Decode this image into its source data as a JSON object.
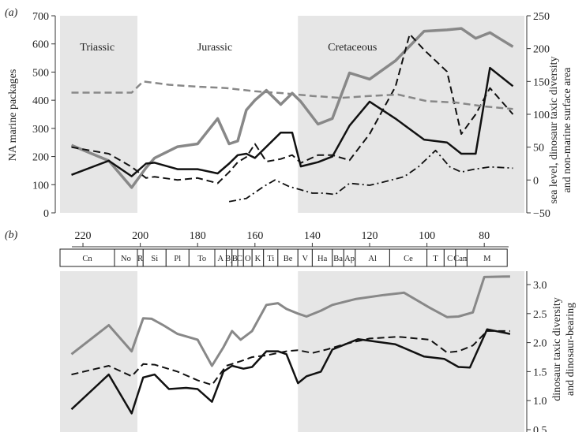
{
  "chart_data": [
    {
      "panel": "(a)",
      "type": "line",
      "x_axis": {
        "reversed": true,
        "unit": "Ma",
        "range": [
          228,
          66
        ]
      },
      "y_left": {
        "label": "NA marine packages",
        "range": [
          0,
          700
        ],
        "ticks": [
          0,
          100,
          200,
          300,
          400,
          500,
          600,
          700
        ]
      },
      "y_right": {
        "label_line1": "sea level, dinosaur taxic diversity",
        "label_line2": "and non-marine surface area",
        "range": [
          -50,
          250
        ],
        "ticks": [
          -50,
          0,
          50,
          100,
          150,
          200,
          250
        ]
      },
      "period_labels": [
        {
          "text": "Triassic",
          "x": 215
        },
        {
          "text": "Jurassic",
          "x": 174
        },
        {
          "text": "Cretaceous",
          "x": 126
        }
      ],
      "shaded_intervals": [
        [
          228,
          201
        ],
        [
          145,
          66
        ]
      ],
      "series": [
        {
          "axis": "left",
          "color": "#888888",
          "dash": "solid",
          "width": 3.5,
          "x": [
            224,
            211,
            203,
            198,
            195,
            187,
            180,
            173,
            169,
            166,
            163,
            160,
            156,
            151,
            147,
            144,
            138,
            133,
            127,
            120,
            111,
            101,
            93,
            88,
            83,
            78,
            70
          ],
          "y": [
            240,
            185,
            90,
            160,
            195,
            235,
            245,
            335,
            245,
            255,
            365,
            400,
            435,
            385,
            425,
            395,
            315,
            335,
            497,
            475,
            540,
            645,
            650,
            655,
            620,
            640,
            590
          ]
        },
        {
          "axis": "left",
          "color": "#111111",
          "dash": "solid",
          "width": 2.5,
          "x": [
            224,
            211,
            203,
            198,
            195,
            187,
            180,
            173,
            169,
            166,
            163,
            160,
            156,
            151,
            147,
            144,
            138,
            133,
            127,
            120,
            111,
            101,
            93,
            88,
            83,
            78,
            70
          ],
          "y": [
            135,
            185,
            130,
            175,
            178,
            155,
            155,
            140,
            175,
            205,
            210,
            195,
            235,
            285,
            285,
            165,
            180,
            200,
            310,
            395,
            335,
            260,
            250,
            210,
            210,
            515,
            450
          ]
        },
        {
          "axis": "right",
          "color": "#111111",
          "dash": "dashed",
          "width": 2,
          "x": [
            224,
            211,
            203,
            198,
            195,
            187,
            180,
            173,
            169,
            166,
            163,
            160,
            156,
            151,
            147,
            144,
            138,
            133,
            127,
            120,
            111,
            106,
            101,
            93,
            88,
            83,
            78,
            70
          ],
          "y": [
            50,
            40,
            20,
            3,
            5,
            0,
            3,
            -5,
            12,
            27,
            35,
            55,
            28,
            32,
            38,
            26,
            38,
            38,
            30,
            70,
            142,
            222,
            198,
            165,
            70,
            100,
            140,
            100
          ]
        },
        {
          "axis": "right",
          "color": "#888888",
          "dash": "dashed",
          "width": 2.5,
          "x": [
            224,
            203,
            199,
            190,
            180,
            170,
            160,
            150,
            140,
            130,
            120,
            110,
            100,
            90,
            80,
            70
          ],
          "y": [
            133,
            133,
            150,
            145,
            142,
            140,
            135,
            132,
            128,
            125,
            128,
            130,
            120,
            118,
            112,
            108
          ]
        },
        {
          "axis": "right",
          "color": "#111111",
          "dash": "dashdot",
          "width": 1.8,
          "x": [
            169,
            163,
            157,
            153,
            148,
            144,
            140,
            136,
            132,
            127,
            120,
            115,
            108,
            103,
            97,
            92,
            88,
            84,
            78,
            70
          ],
          "y": [
            -33,
            -28,
            -10,
            0,
            -10,
            -15,
            -20,
            -20,
            -22,
            -5,
            -8,
            -3,
            5,
            20,
            45,
            20,
            12,
            16,
            20,
            18
          ]
        }
      ]
    },
    {
      "panel": "(b)",
      "type": "line",
      "x_axis": {
        "reversed": true,
        "unit": "Ma",
        "range": [
          228,
          66
        ],
        "tick_labels": [
          "220",
          "200",
          "180",
          "160",
          "140",
          "120",
          "100",
          "80"
        ],
        "tick_values": [
          220,
          200,
          180,
          160,
          140,
          120,
          100,
          80
        ]
      },
      "stages": [
        "Cn",
        "No",
        "R",
        "Si",
        "Pl",
        "To",
        "A",
        "Bj",
        "B",
        "Cl",
        "O",
        "K",
        "Ti",
        "Be",
        "V",
        "Ha",
        "Ba",
        "Ap",
        "Al",
        "Ce",
        "T",
        "C",
        "Cam",
        "M"
      ],
      "stage_bounds": [
        228,
        209,
        201,
        199,
        191,
        183,
        174,
        170,
        168,
        166,
        164,
        161,
        157,
        152,
        145,
        140,
        133,
        129,
        125,
        113,
        100,
        94,
        90,
        86,
        72,
        66
      ],
      "y_right": {
        "label_line1": "dinosaur taxic diversity",
        "label_line2": "and dinosaur-bearing",
        "range": [
          0.5,
          3.25
        ],
        "ticks": [
          "0.5",
          "1.0",
          "1.5",
          "2.0",
          "2.5",
          "3.0"
        ],
        "tick_values": [
          0.5,
          1.0,
          1.5,
          2.0,
          2.5,
          3.0
        ]
      },
      "shaded_intervals": [
        [
          228,
          201
        ],
        [
          145,
          66
        ]
      ],
      "series": [
        {
          "axis": "right",
          "color": "#888888",
          "dash": "solid",
          "width": 3,
          "x": [
            224,
            211,
            203,
            199,
            196,
            192,
            187,
            180,
            175,
            171,
            168,
            165,
            161,
            156,
            152,
            149,
            145,
            142,
            137,
            133,
            125,
            115,
            108,
            99,
            93,
            89,
            84,
            80,
            71
          ],
          "y": [
            1.8,
            2.3,
            1.85,
            2.42,
            2.41,
            2.3,
            2.15,
            2.05,
            1.6,
            1.92,
            2.2,
            2.05,
            2.2,
            2.65,
            2.68,
            2.58,
            2.5,
            2.45,
            2.55,
            2.65,
            2.75,
            2.82,
            2.86,
            2.6,
            2.44,
            2.45,
            2.52,
            3.13,
            3.14
          ]
        },
        {
          "axis": "right",
          "color": "#111111",
          "dash": "dashed",
          "width": 2,
          "x": [
            224,
            211,
            203,
            199,
            195,
            187,
            180,
            175,
            170,
            165,
            161,
            156,
            152,
            149,
            145,
            140,
            135,
            129,
            120,
            110,
            99,
            93,
            89,
            84,
            79,
            71
          ],
          "y": [
            1.45,
            1.6,
            1.42,
            1.63,
            1.62,
            1.5,
            1.35,
            1.27,
            1.6,
            1.68,
            1.75,
            1.78,
            1.82,
            1.85,
            1.87,
            1.82,
            1.88,
            1.97,
            2.07,
            2.1,
            2.05,
            1.83,
            1.85,
            1.95,
            2.2,
            2.2
          ]
        },
        {
          "axis": "right",
          "color": "#111111",
          "dash": "solid",
          "width": 2.5,
          "x": [
            224,
            211,
            203,
            199,
            195,
            190,
            184,
            180,
            175,
            171,
            168,
            164,
            161,
            156,
            152,
            149,
            145,
            142,
            137,
            133,
            124,
            111,
            101,
            94,
            89,
            85,
            79,
            71
          ],
          "y": [
            0.85,
            1.45,
            0.78,
            1.4,
            1.45,
            1.2,
            1.22,
            1.2,
            0.98,
            1.5,
            1.6,
            1.55,
            1.58,
            1.85,
            1.85,
            1.8,
            1.3,
            1.42,
            1.5,
            1.88,
            2.06,
            1.97,
            1.76,
            1.72,
            1.58,
            1.57,
            2.23,
            2.15
          ]
        }
      ]
    }
  ]
}
